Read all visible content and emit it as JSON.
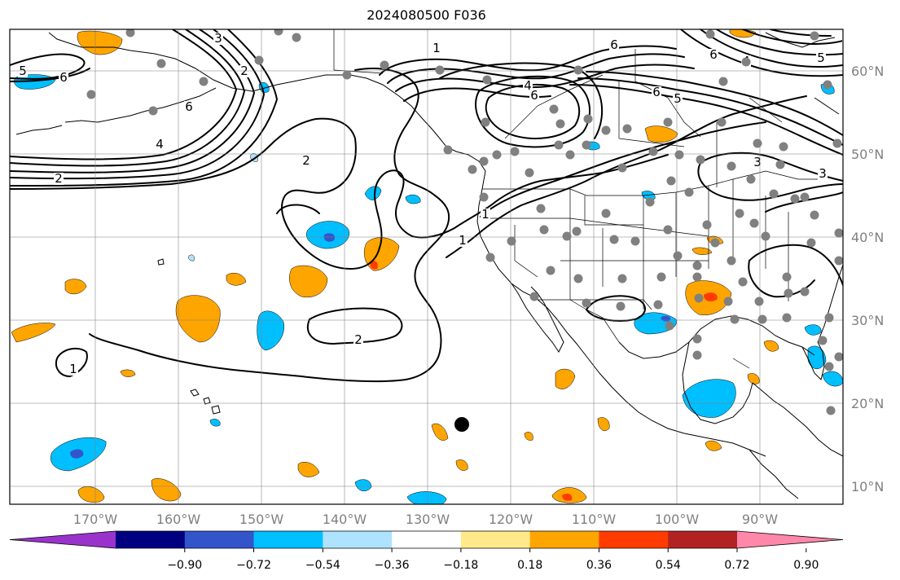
{
  "title": "2024080500 F036",
  "map": {
    "lat_labels": [
      "60°N",
      "50°N",
      "40°N",
      "30°N",
      "20°N",
      "10°N"
    ],
    "lon_labels": [
      "170°W",
      "160°W",
      "150°W",
      "140°W",
      "130°W",
      "120°W",
      "110°W",
      "100°W",
      "90°W"
    ],
    "contour_labels": [
      "5",
      "6",
      "3",
      "6",
      "4",
      "2",
      "2",
      "1",
      "1",
      "6",
      "4",
      "6",
      "5",
      "2",
      "1",
      "2",
      "1",
      "3",
      "6",
      "4",
      "5",
      "6",
      "5",
      "3"
    ],
    "station_color": "#808080",
    "marker_color": "#000000"
  },
  "colorbar": {
    "colors": [
      "#9933cc",
      "#000080",
      "#3355cc",
      "#00bfff",
      "#aee2ff",
      "#ffffff",
      "#ffe98a",
      "#ffa500",
      "#ff3b00",
      "#b22222",
      "#ff88aa"
    ],
    "ticks": [
      "−0.90",
      "−0.72",
      "−0.54",
      "−0.36",
      "−0.18",
      "0.18",
      "0.36",
      "0.54",
      "0.72",
      "0.90"
    ]
  }
}
